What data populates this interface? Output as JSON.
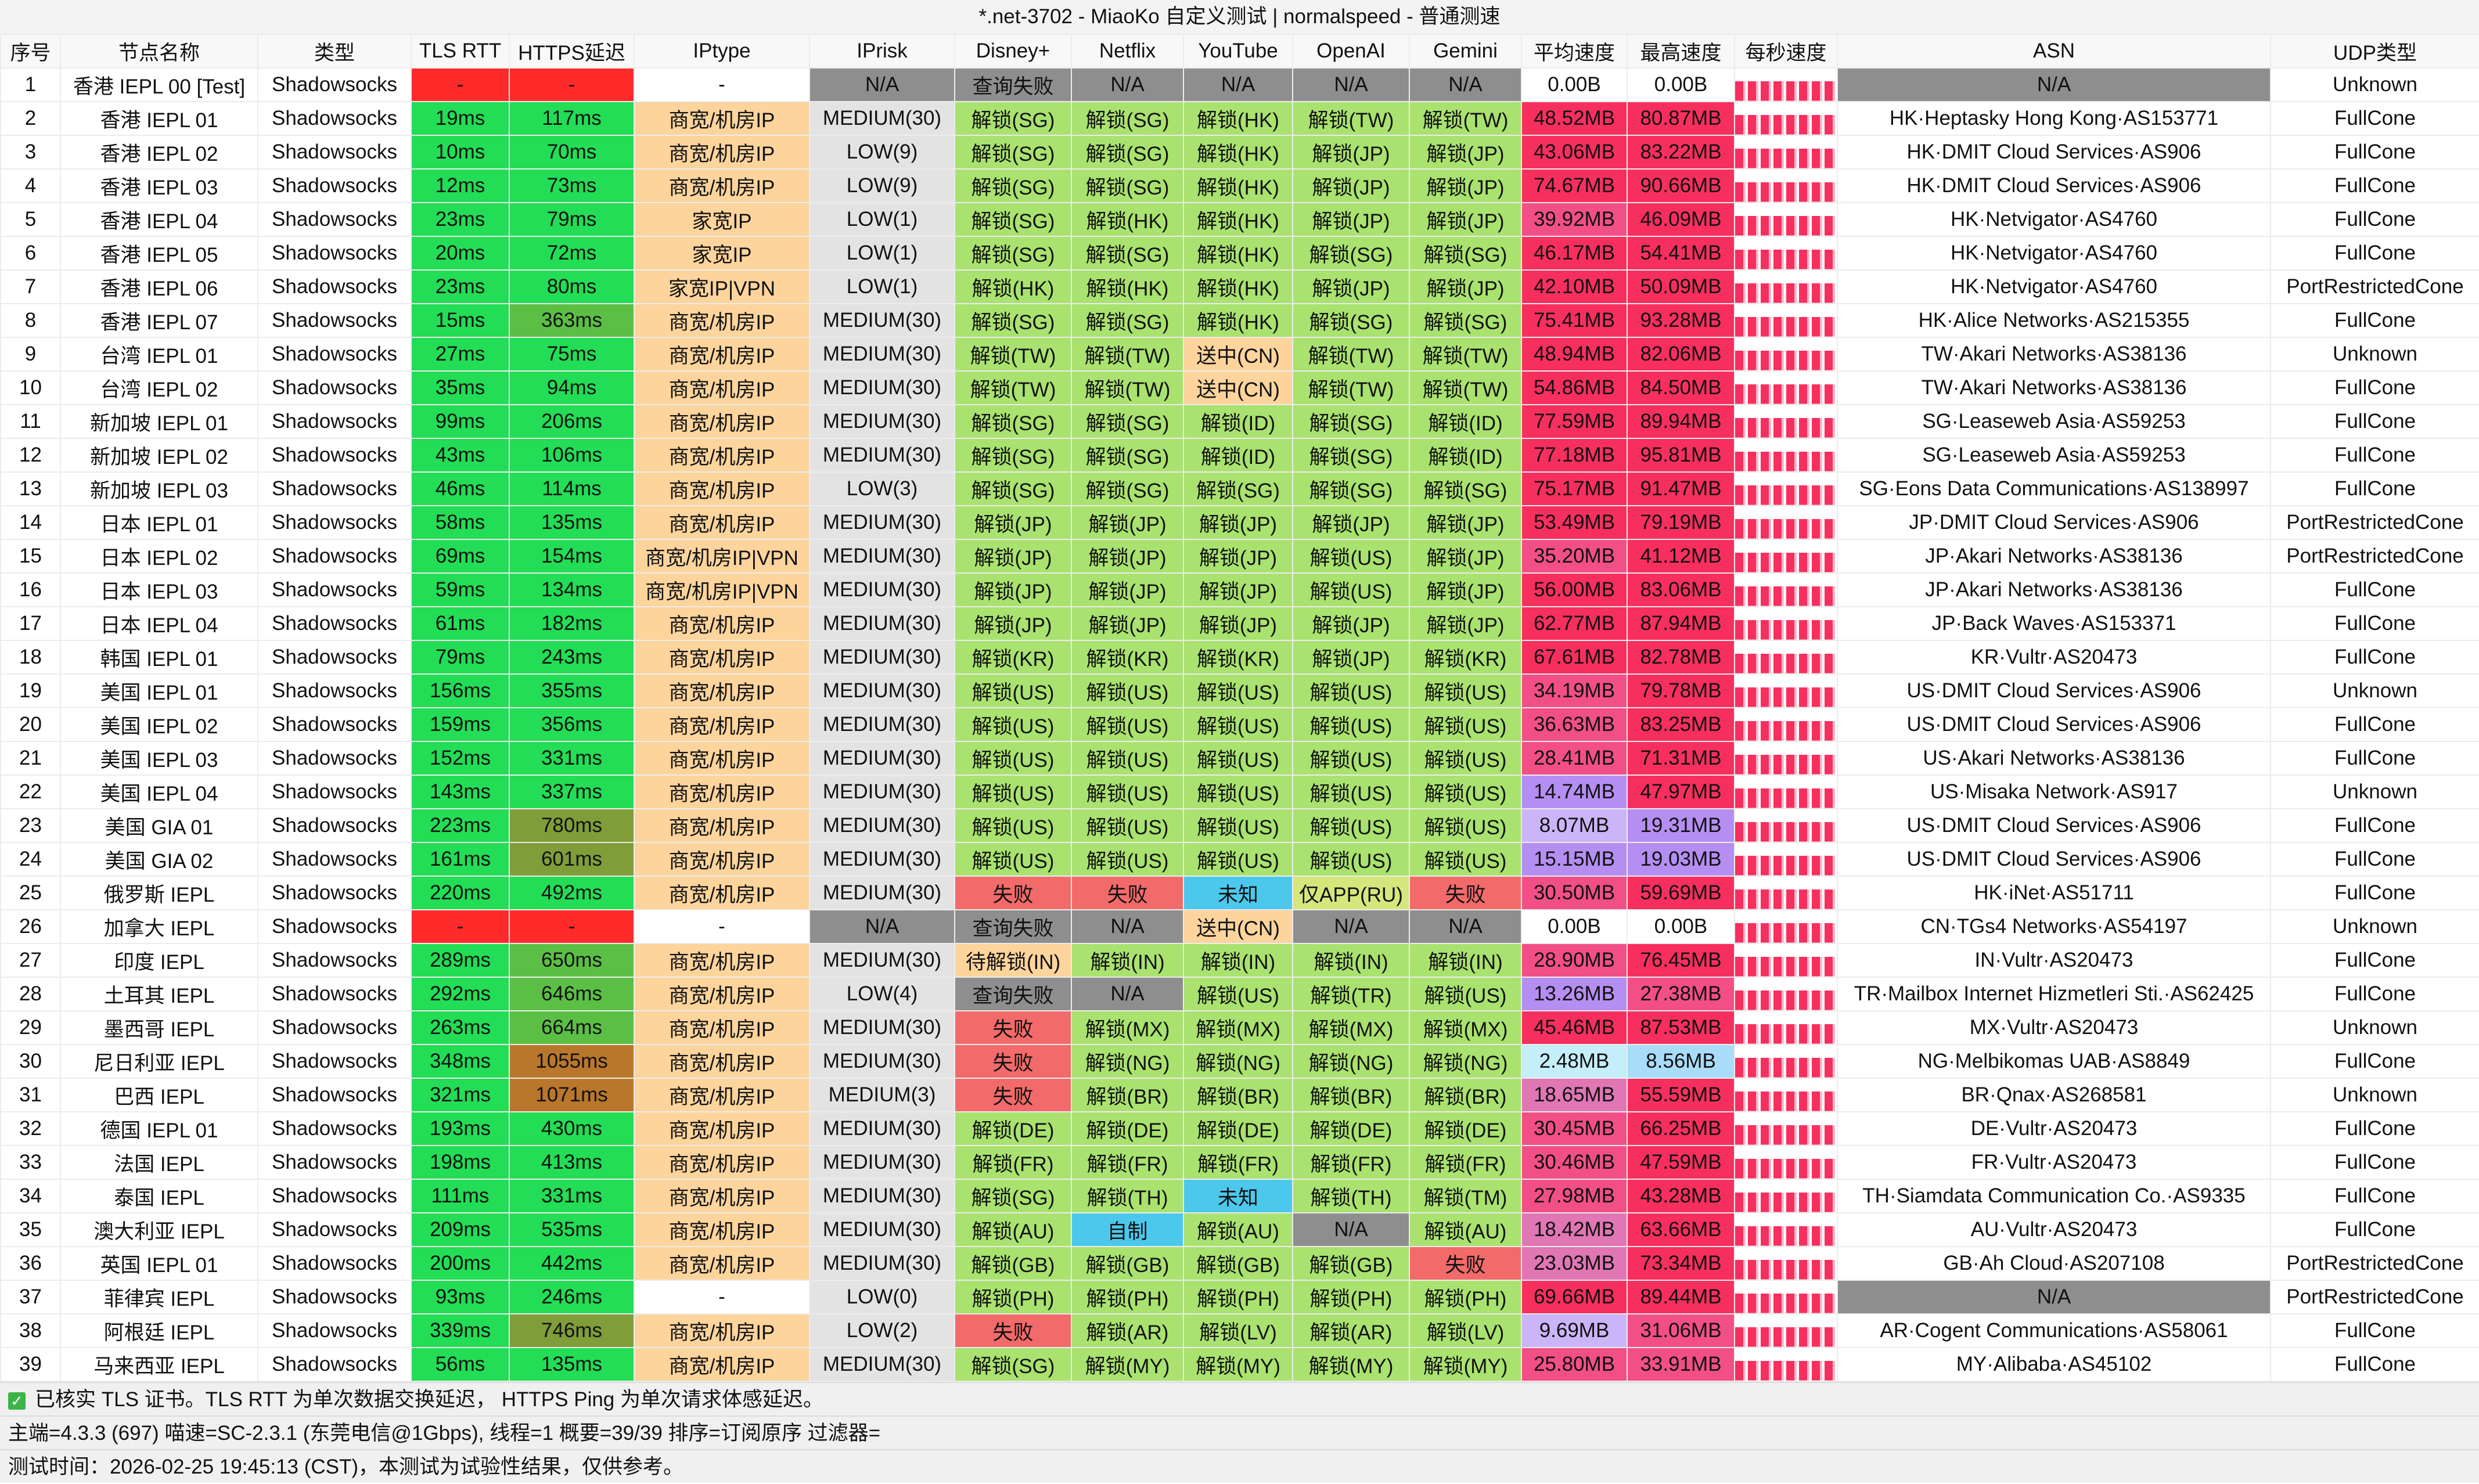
{
  "title": "*.net-3702 - MiaoKo 自定义测试 | normalspeed - 普通测速",
  "palette": {
    "w": "#ffffff",
    "G": "#22dd55",
    "r": "#ff2b2b",
    "m": "#5cbf45",
    "o": "#7f9d38",
    "b": "#b8772b",
    "y": "#fcd49c",
    "l": "#e3e3e3",
    "n": "#8e8e8e",
    "u": "#a9e26f",
    "f": "#f26a6a",
    "c": "#4cc8ec",
    "k": "#d5e77c",
    "p": "#f72f5e",
    "q": "#f24f86",
    "s": "#e076b4",
    "v": "#b58ef2",
    "e": "#cbb4f7",
    "a": "#c4eef9",
    "d": "#a9dcf8"
  },
  "table": {
    "headers": [
      "序号",
      "节点名称",
      "类型",
      "TLS RTT",
      "HTTPS延迟",
      "IPtype",
      "IPrisk",
      "Disney+",
      "Netflix",
      "YouTube",
      "OpenAI",
      "Gemini",
      "平均速度",
      "最高速度",
      "每秒速度",
      "ASN",
      "UDP类型"
    ],
    "rows": [
      {
        "cells": [
          "1",
          "香港 IEPL 00 [Test]",
          "Shadowsocks",
          "-",
          "-",
          "-",
          "N/A",
          "查询失败",
          "N/A",
          "N/A",
          "N/A",
          "N/A",
          "0.00B",
          "0.00B",
          "N/A",
          "Unknown"
        ],
        "colors": "wwwrrwnnnnnnwwnw"
      },
      {
        "cells": [
          "2",
          "香港 IEPL 01",
          "Shadowsocks",
          "19ms",
          "117ms",
          "商宽/机房IP",
          "MEDIUM(30)",
          "解锁(SG)",
          "解锁(SG)",
          "解锁(HK)",
          "解锁(TW)",
          "解锁(TW)",
          "48.52MB",
          "80.87MB",
          "HK·Heptasky Hong Kong·AS153771",
          "FullCone"
        ],
        "colors": "wwwGGyluuuuuppww"
      },
      {
        "cells": [
          "3",
          "香港 IEPL 02",
          "Shadowsocks",
          "10ms",
          "70ms",
          "商宽/机房IP",
          "LOW(9)",
          "解锁(SG)",
          "解锁(SG)",
          "解锁(HK)",
          "解锁(JP)",
          "解锁(JP)",
          "43.06MB",
          "83.22MB",
          "HK·DMIT Cloud Services·AS906",
          "FullCone"
        ],
        "colors": "wwwGGyluuuuuppww"
      },
      {
        "cells": [
          "4",
          "香港 IEPL 03",
          "Shadowsocks",
          "12ms",
          "73ms",
          "商宽/机房IP",
          "LOW(9)",
          "解锁(SG)",
          "解锁(SG)",
          "解锁(HK)",
          "解锁(JP)",
          "解锁(JP)",
          "74.67MB",
          "90.66MB",
          "HK·DMIT Cloud Services·AS906",
          "FullCone"
        ],
        "colors": "wwwGGyluuuuuppww"
      },
      {
        "cells": [
          "5",
          "香港 IEPL 04",
          "Shadowsocks",
          "23ms",
          "79ms",
          "家宽IP",
          "LOW(1)",
          "解锁(SG)",
          "解锁(HK)",
          "解锁(HK)",
          "解锁(JP)",
          "解锁(JP)",
          "39.92MB",
          "46.09MB",
          "HK·Netvigator·AS4760",
          "FullCone"
        ],
        "colors": "wwwGGyluuuuuqpww"
      },
      {
        "cells": [
          "6",
          "香港 IEPL 05",
          "Shadowsocks",
          "20ms",
          "72ms",
          "家宽IP",
          "LOW(1)",
          "解锁(SG)",
          "解锁(SG)",
          "解锁(HK)",
          "解锁(SG)",
          "解锁(SG)",
          "46.17MB",
          "54.41MB",
          "HK·Netvigator·AS4760",
          "FullCone"
        ],
        "colors": "wwwGGyluuuuuppww"
      },
      {
        "cells": [
          "7",
          "香港 IEPL 06",
          "Shadowsocks",
          "23ms",
          "80ms",
          "家宽IP|VPN",
          "LOW(1)",
          "解锁(HK)",
          "解锁(HK)",
          "解锁(HK)",
          "解锁(JP)",
          "解锁(JP)",
          "42.10MB",
          "50.09MB",
          "HK·Netvigator·AS4760",
          "PortRestrictedCone"
        ],
        "colors": "wwwGGyluuuuuppww"
      },
      {
        "cells": [
          "8",
          "香港 IEPL 07",
          "Shadowsocks",
          "15ms",
          "363ms",
          "商宽/机房IP",
          "MEDIUM(30)",
          "解锁(SG)",
          "解锁(SG)",
          "解锁(HK)",
          "解锁(SG)",
          "解锁(SG)",
          "75.41MB",
          "93.28MB",
          "HK·Alice Networks·AS215355",
          "FullCone"
        ],
        "colors": "wwwGmyluuuuuppww"
      },
      {
        "cells": [
          "9",
          "台湾 IEPL 01",
          "Shadowsocks",
          "27ms",
          "75ms",
          "商宽/机房IP",
          "MEDIUM(30)",
          "解锁(TW)",
          "解锁(TW)",
          "送中(CN)",
          "解锁(TW)",
          "解锁(TW)",
          "48.94MB",
          "82.06MB",
          "TW·Akari Networks·AS38136",
          "Unknown"
        ],
        "colors": "wwwGGyluuyuuppww"
      },
      {
        "cells": [
          "10",
          "台湾 IEPL 02",
          "Shadowsocks",
          "35ms",
          "94ms",
          "商宽/机房IP",
          "MEDIUM(30)",
          "解锁(TW)",
          "解锁(TW)",
          "送中(CN)",
          "解锁(TW)",
          "解锁(TW)",
          "54.86MB",
          "84.50MB",
          "TW·Akari Networks·AS38136",
          "FullCone"
        ],
        "colors": "wwwGGyluuyuuppww"
      },
      {
        "cells": [
          "11",
          "新加坡 IEPL 01",
          "Shadowsocks",
          "99ms",
          "206ms",
          "商宽/机房IP",
          "MEDIUM(30)",
          "解锁(SG)",
          "解锁(SG)",
          "解锁(ID)",
          "解锁(SG)",
          "解锁(ID)",
          "77.59MB",
          "89.94MB",
          "SG·Leaseweb Asia·AS59253",
          "FullCone"
        ],
        "colors": "wwwGGyluuuuuppww"
      },
      {
        "cells": [
          "12",
          "新加坡 IEPL 02",
          "Shadowsocks",
          "43ms",
          "106ms",
          "商宽/机房IP",
          "MEDIUM(30)",
          "解锁(SG)",
          "解锁(SG)",
          "解锁(ID)",
          "解锁(SG)",
          "解锁(ID)",
          "77.18MB",
          "95.81MB",
          "SG·Leaseweb Asia·AS59253",
          "FullCone"
        ],
        "colors": "wwwGGyluuuuuppww"
      },
      {
        "cells": [
          "13",
          "新加坡 IEPL 03",
          "Shadowsocks",
          "46ms",
          "114ms",
          "商宽/机房IP",
          "LOW(3)",
          "解锁(SG)",
          "解锁(SG)",
          "解锁(SG)",
          "解锁(SG)",
          "解锁(SG)",
          "75.17MB",
          "91.47MB",
          "SG·Eons Data Communications·AS138997",
          "FullCone"
        ],
        "colors": "wwwGGyluuuuuppww"
      },
      {
        "cells": [
          "14",
          "日本 IEPL 01",
          "Shadowsocks",
          "58ms",
          "135ms",
          "商宽/机房IP",
          "MEDIUM(30)",
          "解锁(JP)",
          "解锁(JP)",
          "解锁(JP)",
          "解锁(JP)",
          "解锁(JP)",
          "53.49MB",
          "79.19MB",
          "JP·DMIT Cloud Services·AS906",
          "PortRestrictedCone"
        ],
        "colors": "wwwGGyluuuuuppww"
      },
      {
        "cells": [
          "15",
          "日本 IEPL 02",
          "Shadowsocks",
          "69ms",
          "154ms",
          "商宽/机房IP|VPN",
          "MEDIUM(30)",
          "解锁(JP)",
          "解锁(JP)",
          "解锁(JP)",
          "解锁(US)",
          "解锁(JP)",
          "35.20MB",
          "41.12MB",
          "JP·Akari Networks·AS38136",
          "PortRestrictedCone"
        ],
        "colors": "wwwGGyluuuuuqpww"
      },
      {
        "cells": [
          "16",
          "日本 IEPL 03",
          "Shadowsocks",
          "59ms",
          "134ms",
          "商宽/机房IP|VPN",
          "MEDIUM(30)",
          "解锁(JP)",
          "解锁(JP)",
          "解锁(JP)",
          "解锁(US)",
          "解锁(JP)",
          "56.00MB",
          "83.06MB",
          "JP·Akari Networks·AS38136",
          "FullCone"
        ],
        "colors": "wwwGGyluuuuuppww"
      },
      {
        "cells": [
          "17",
          "日本 IEPL 04",
          "Shadowsocks",
          "61ms",
          "182ms",
          "商宽/机房IP",
          "MEDIUM(30)",
          "解锁(JP)",
          "解锁(JP)",
          "解锁(JP)",
          "解锁(JP)",
          "解锁(JP)",
          "62.77MB",
          "87.94MB",
          "JP·Back Waves·AS153371",
          "FullCone"
        ],
        "colors": "wwwGGyluuuuuppww"
      },
      {
        "cells": [
          "18",
          "韩国 IEPL 01",
          "Shadowsocks",
          "79ms",
          "243ms",
          "商宽/机房IP",
          "MEDIUM(30)",
          "解锁(KR)",
          "解锁(KR)",
          "解锁(KR)",
          "解锁(JP)",
          "解锁(KR)",
          "67.61MB",
          "82.78MB",
          "KR·Vultr·AS20473",
          "FullCone"
        ],
        "colors": "wwwGGyluuuuuppww"
      },
      {
        "cells": [
          "19",
          "美国 IEPL 01",
          "Shadowsocks",
          "156ms",
          "355ms",
          "商宽/机房IP",
          "MEDIUM(30)",
          "解锁(US)",
          "解锁(US)",
          "解锁(US)",
          "解锁(US)",
          "解锁(US)",
          "34.19MB",
          "79.78MB",
          "US·DMIT Cloud Services·AS906",
          "Unknown"
        ],
        "colors": "wwwGGyluuuuuqpww"
      },
      {
        "cells": [
          "20",
          "美国 IEPL 02",
          "Shadowsocks",
          "159ms",
          "356ms",
          "商宽/机房IP",
          "MEDIUM(30)",
          "解锁(US)",
          "解锁(US)",
          "解锁(US)",
          "解锁(US)",
          "解锁(US)",
          "36.63MB",
          "83.25MB",
          "US·DMIT Cloud Services·AS906",
          "FullCone"
        ],
        "colors": "wwwGGyluuuuuqpww"
      },
      {
        "cells": [
          "21",
          "美国 IEPL 03",
          "Shadowsocks",
          "152ms",
          "331ms",
          "商宽/机房IP",
          "MEDIUM(30)",
          "解锁(US)",
          "解锁(US)",
          "解锁(US)",
          "解锁(US)",
          "解锁(US)",
          "28.41MB",
          "71.31MB",
          "US·Akari Networks·AS38136",
          "FullCone"
        ],
        "colors": "wwwGGyluuuuuqpww"
      },
      {
        "cells": [
          "22",
          "美国 IEPL 04",
          "Shadowsocks",
          "143ms",
          "337ms",
          "商宽/机房IP",
          "MEDIUM(30)",
          "解锁(US)",
          "解锁(US)",
          "解锁(US)",
          "解锁(US)",
          "解锁(US)",
          "14.74MB",
          "47.97MB",
          "US·Misaka Network·AS917",
          "Unknown"
        ],
        "colors": "wwwGGyluuuuuvpww"
      },
      {
        "cells": [
          "23",
          "美国 GIA 01",
          "Shadowsocks",
          "223ms",
          "780ms",
          "商宽/机房IP",
          "MEDIUM(30)",
          "解锁(US)",
          "解锁(US)",
          "解锁(US)",
          "解锁(US)",
          "解锁(US)",
          "8.07MB",
          "19.31MB",
          "US·DMIT Cloud Services·AS906",
          "FullCone"
        ],
        "colors": "wwwGoyluuuuuevww"
      },
      {
        "cells": [
          "24",
          "美国 GIA 02",
          "Shadowsocks",
          "161ms",
          "601ms",
          "商宽/机房IP",
          "MEDIUM(30)",
          "解锁(US)",
          "解锁(US)",
          "解锁(US)",
          "解锁(US)",
          "解锁(US)",
          "15.15MB",
          "19.03MB",
          "US·DMIT Cloud Services·AS906",
          "FullCone"
        ],
        "colors": "wwwGoyluuuuuvvww"
      },
      {
        "cells": [
          "25",
          "俄罗斯 IEPL",
          "Shadowsocks",
          "220ms",
          "492ms",
          "商宽/机房IP",
          "MEDIUM(30)",
          "失败",
          "失败",
          "未知",
          "仅APP(RU)",
          "失败",
          "30.50MB",
          "59.69MB",
          "HK·iNet·AS51711",
          "FullCone"
        ],
        "colors": "wwwGGylffckfqpww"
      },
      {
        "cells": [
          "26",
          "加拿大 IEPL",
          "Shadowsocks",
          "-",
          "-",
          "-",
          "N/A",
          "查询失败",
          "N/A",
          "送中(CN)",
          "N/A",
          "N/A",
          "0.00B",
          "0.00B",
          "CN·TGs4 Networks·AS54197",
          "Unknown"
        ],
        "colors": "wwwrrwnnnynnwwww"
      },
      {
        "cells": [
          "27",
          "印度 IEPL",
          "Shadowsocks",
          "289ms",
          "650ms",
          "商宽/机房IP",
          "MEDIUM(30)",
          "待解锁(IN)",
          "解锁(IN)",
          "解锁(IN)",
          "解锁(IN)",
          "解锁(IN)",
          "28.90MB",
          "76.45MB",
          "IN·Vultr·AS20473",
          "FullCone"
        ],
        "colors": "wwwGmylyuuuuqpww"
      },
      {
        "cells": [
          "28",
          "土耳其 IEPL",
          "Shadowsocks",
          "292ms",
          "646ms",
          "商宽/机房IP",
          "LOW(4)",
          "查询失败",
          "N/A",
          "解锁(US)",
          "解锁(TR)",
          "解锁(US)",
          "13.26MB",
          "27.38MB",
          "TR·Mailbox Internet Hizmetleri Sti.·AS62425",
          "FullCone"
        ],
        "colors": "wwwGmylnnuuuvqww"
      },
      {
        "cells": [
          "29",
          "墨西哥 IEPL",
          "Shadowsocks",
          "263ms",
          "664ms",
          "商宽/机房IP",
          "MEDIUM(30)",
          "失败",
          "解锁(MX)",
          "解锁(MX)",
          "解锁(MX)",
          "解锁(MX)",
          "45.46MB",
          "87.53MB",
          "MX·Vultr·AS20473",
          "Unknown"
        ],
        "colors": "wwwGmylfuuuuppww"
      },
      {
        "cells": [
          "30",
          "尼日利亚 IEPL",
          "Shadowsocks",
          "348ms",
          "1055ms",
          "商宽/机房IP",
          "MEDIUM(30)",
          "失败",
          "解锁(NG)",
          "解锁(NG)",
          "解锁(NG)",
          "解锁(NG)",
          "2.48MB",
          "8.56MB",
          "NG·Melbikomas UAB·AS8849",
          "FullCone"
        ],
        "colors": "wwwGbylfuuuuadww"
      },
      {
        "cells": [
          "31",
          "巴西 IEPL",
          "Shadowsocks",
          "321ms",
          "1071ms",
          "商宽/机房IP",
          "MEDIUM(3)",
          "失败",
          "解锁(BR)",
          "解锁(BR)",
          "解锁(BR)",
          "解锁(BR)",
          "18.65MB",
          "55.59MB",
          "BR·Qnax·AS268581",
          "Unknown"
        ],
        "colors": "wwwGbylfuuuuspww"
      },
      {
        "cells": [
          "32",
          "德国 IEPL 01",
          "Shadowsocks",
          "193ms",
          "430ms",
          "商宽/机房IP",
          "MEDIUM(30)",
          "解锁(DE)",
          "解锁(DE)",
          "解锁(DE)",
          "解锁(DE)",
          "解锁(DE)",
          "30.45MB",
          "66.25MB",
          "DE·Vultr·AS20473",
          "FullCone"
        ],
        "colors": "wwwGGyluuuuuqpww"
      },
      {
        "cells": [
          "33",
          "法国 IEPL",
          "Shadowsocks",
          "198ms",
          "413ms",
          "商宽/机房IP",
          "MEDIUM(30)",
          "解锁(FR)",
          "解锁(FR)",
          "解锁(FR)",
          "解锁(FR)",
          "解锁(FR)",
          "30.46MB",
          "47.59MB",
          "FR·Vultr·AS20473",
          "FullCone"
        ],
        "colors": "wwwGGyluuuuuqpww"
      },
      {
        "cells": [
          "34",
          "泰国 IEPL",
          "Shadowsocks",
          "111ms",
          "331ms",
          "商宽/机房IP",
          "MEDIUM(30)",
          "解锁(SG)",
          "解锁(TH)",
          "未知",
          "解锁(TH)",
          "解锁(TM)",
          "27.98MB",
          "43.28MB",
          "TH·Siamdata Communication Co.·AS9335",
          "FullCone"
        ],
        "colors": "wwwGGyluucuuqpww"
      },
      {
        "cells": [
          "35",
          "澳大利亚 IEPL",
          "Shadowsocks",
          "209ms",
          "535ms",
          "商宽/机房IP",
          "MEDIUM(30)",
          "解锁(AU)",
          "自制",
          "解锁(AU)",
          "N/A",
          "解锁(AU)",
          "18.42MB",
          "63.66MB",
          "AU·Vultr·AS20473",
          "FullCone"
        ],
        "colors": "wwwGGylucunuspww"
      },
      {
        "cells": [
          "36",
          "英国 IEPL 01",
          "Shadowsocks",
          "200ms",
          "442ms",
          "商宽/机房IP",
          "MEDIUM(30)",
          "解锁(GB)",
          "解锁(GB)",
          "解锁(GB)",
          "解锁(GB)",
          "失败",
          "23.03MB",
          "73.34MB",
          "GB·Ah Cloud·AS207108",
          "PortRestrictedCone"
        ],
        "colors": "wwwGGyluuuufspww"
      },
      {
        "cells": [
          "37",
          "菲律宾 IEPL",
          "Shadowsocks",
          "93ms",
          "246ms",
          "-",
          "LOW(0)",
          "解锁(PH)",
          "解锁(PH)",
          "解锁(PH)",
          "解锁(PH)",
          "解锁(PH)",
          "69.66MB",
          "89.44MB",
          "N/A",
          "PortRestrictedCone"
        ],
        "colors": "wwwGGwluuuuuppnw"
      },
      {
        "cells": [
          "38",
          "阿根廷 IEPL",
          "Shadowsocks",
          "339ms",
          "746ms",
          "商宽/机房IP",
          "LOW(2)",
          "失败",
          "解锁(AR)",
          "解锁(LV)",
          "解锁(AR)",
          "解锁(LV)",
          "9.69MB",
          "31.06MB",
          "AR·Cogent Communications·AS58061",
          "FullCone"
        ],
        "colors": "wwwGoylfuuuueqww"
      },
      {
        "cells": [
          "39",
          "马来西亚 IEPL",
          "Shadowsocks",
          "56ms",
          "135ms",
          "商宽/机房IP",
          "MEDIUM(30)",
          "解锁(SG)",
          "解锁(MY)",
          "解锁(MY)",
          "解锁(MY)",
          "解锁(MY)",
          "25.80MB",
          "33.91MB",
          "MY·Alibaba·AS45102",
          "FullCone"
        ],
        "colors": "wwwGGyluuuuuqqww"
      }
    ]
  },
  "footer": [
    "已核实 TLS 证书。TLS RTT 为单次数据交换延迟， HTTPS Ping 为单次请求体感延迟。",
    "主端=4.3.3 (697) 喵速=SC-2.3.1 (东莞电信@1Gbps), 线程=1 概要=39/39 排序=订阅原序 过滤器=",
    "测试时间：2026-02-25 19:45:13 (CST)，本测试为试验性结果，仅供参考。"
  ]
}
